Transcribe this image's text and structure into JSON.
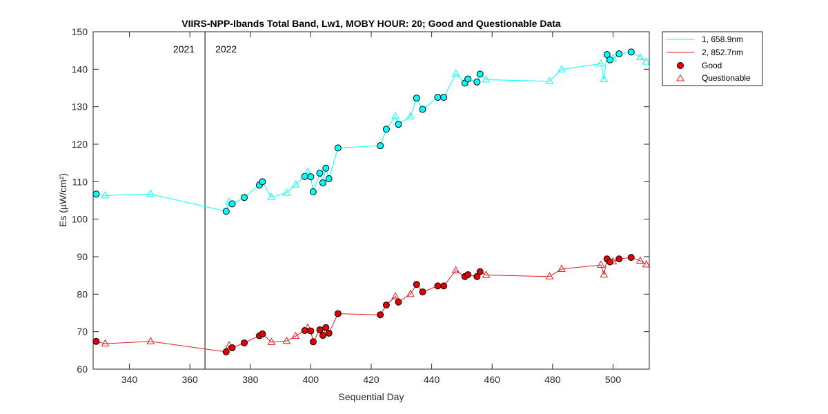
{
  "chart_data": {
    "type": "line",
    "title": "VIIRS-NPP-Ibands Total Band,  Lw1, MOBY HOUR: 20;  Good and Questionable Data",
    "xlabel": "Sequential Day",
    "ylabel": "Es (µW/cm²)",
    "xlim": [
      328,
      512
    ],
    "ylim": [
      60,
      150
    ],
    "xticks": [
      340,
      360,
      380,
      400,
      420,
      440,
      460,
      480,
      500
    ],
    "yticks": [
      60,
      70,
      80,
      90,
      100,
      110,
      120,
      130,
      140,
      150
    ],
    "grid": false,
    "legend_position": "outside-top-right",
    "year_divider": {
      "x": 365,
      "left_label": "2021",
      "right_label": "2022"
    },
    "legend": {
      "series1": "1, 658.9nm",
      "series2": "2, 852.7nm",
      "good": "Good",
      "questionable": "Questionable"
    },
    "series": [
      {
        "name": "1, 658.9nm",
        "color": "#00FFFF",
        "marker_fill": "#00FFFF",
        "points": [
          {
            "x": 329,
            "y": 106.7,
            "q": "good"
          },
          {
            "x": 332,
            "y": 106.3,
            "q": "questionable"
          },
          {
            "x": 347,
            "y": 106.7,
            "q": "questionable"
          },
          {
            "x": 372,
            "y": 102.1,
            "q": "good"
          },
          {
            "x": 373,
            "y": 104.6,
            "q": "questionable"
          },
          {
            "x": 374,
            "y": 104.1,
            "q": "good"
          },
          {
            "x": 378,
            "y": 105.8,
            "q": "good"
          },
          {
            "x": 383,
            "y": 109.1,
            "q": "good"
          },
          {
            "x": 384,
            "y": 110.0,
            "q": "good"
          },
          {
            "x": 387,
            "y": 105.8,
            "q": "questionable"
          },
          {
            "x": 392,
            "y": 107.0,
            "q": "questionable"
          },
          {
            "x": 395,
            "y": 109.2,
            "q": "questionable"
          },
          {
            "x": 398,
            "y": 111.4,
            "q": "good"
          },
          {
            "x": 399,
            "y": 112.6,
            "q": "questionable"
          },
          {
            "x": 400,
            "y": 111.3,
            "q": "good"
          },
          {
            "x": 400.8,
            "y": 107.3,
            "q": "good"
          },
          {
            "x": 403,
            "y": 112.3,
            "q": "good"
          },
          {
            "x": 404,
            "y": 109.7,
            "q": "good"
          },
          {
            "x": 405,
            "y": 113.6,
            "q": "good"
          },
          {
            "x": 406,
            "y": 110.8,
            "q": "good"
          },
          {
            "x": 409,
            "y": 119.0,
            "q": "good"
          },
          {
            "x": 423,
            "y": 119.6,
            "q": "good"
          },
          {
            "x": 425,
            "y": 124.0,
            "q": "good"
          },
          {
            "x": 428,
            "y": 127.4,
            "q": "questionable"
          },
          {
            "x": 429,
            "y": 125.3,
            "q": "good"
          },
          {
            "x": 433,
            "y": 127.4,
            "q": "questionable"
          },
          {
            "x": 435,
            "y": 132.3,
            "q": "good"
          },
          {
            "x": 437,
            "y": 129.3,
            "q": "good"
          },
          {
            "x": 442,
            "y": 132.5,
            "q": "good"
          },
          {
            "x": 444,
            "y": 132.5,
            "q": "good"
          },
          {
            "x": 448,
            "y": 138.8,
            "q": "questionable"
          },
          {
            "x": 451,
            "y": 136.3,
            "q": "good"
          },
          {
            "x": 452,
            "y": 137.4,
            "q": "good"
          },
          {
            "x": 455,
            "y": 136.6,
            "q": "good"
          },
          {
            "x": 456,
            "y": 138.7,
            "q": "good"
          },
          {
            "x": 458,
            "y": 137.2,
            "q": "questionable"
          },
          {
            "x": 479,
            "y": 136.8,
            "q": "questionable"
          },
          {
            "x": 483,
            "y": 139.9,
            "q": "questionable"
          },
          {
            "x": 496,
            "y": 141.5,
            "q": "questionable"
          },
          {
            "x": 497,
            "y": 137.3,
            "q": "questionable"
          },
          {
            "x": 498,
            "y": 143.9,
            "q": "good"
          },
          {
            "x": 499,
            "y": 142.5,
            "q": "good"
          },
          {
            "x": 500,
            "y": 142.9,
            "q": "questionable"
          },
          {
            "x": 502,
            "y": 144.1,
            "q": "good"
          },
          {
            "x": 506,
            "y": 144.6,
            "q": "good"
          },
          {
            "x": 509,
            "y": 143.2,
            "q": "questionable"
          },
          {
            "x": 511,
            "y": 142.0,
            "q": "questionable"
          }
        ]
      },
      {
        "name": "2, 852.7nm",
        "color": "#E41A1C",
        "marker_fill": "#E00000",
        "points": [
          {
            "x": 329,
            "y": 67.4,
            "q": "good"
          },
          {
            "x": 332,
            "y": 66.8,
            "q": "questionable"
          },
          {
            "x": 347,
            "y": 67.4,
            "q": "questionable"
          },
          {
            "x": 372,
            "y": 64.6,
            "q": "good"
          },
          {
            "x": 373,
            "y": 66.3,
            "q": "questionable"
          },
          {
            "x": 374,
            "y": 65.7,
            "q": "good"
          },
          {
            "x": 378,
            "y": 67.0,
            "q": "good"
          },
          {
            "x": 383,
            "y": 68.9,
            "q": "good"
          },
          {
            "x": 384,
            "y": 69.4,
            "q": "good"
          },
          {
            "x": 387,
            "y": 67.2,
            "q": "questionable"
          },
          {
            "x": 392,
            "y": 67.5,
            "q": "questionable"
          },
          {
            "x": 395,
            "y": 68.8,
            "q": "questionable"
          },
          {
            "x": 398,
            "y": 70.3,
            "q": "good"
          },
          {
            "x": 399,
            "y": 71.0,
            "q": "questionable"
          },
          {
            "x": 400,
            "y": 70.2,
            "q": "good"
          },
          {
            "x": 400.8,
            "y": 67.3,
            "q": "good"
          },
          {
            "x": 403,
            "y": 70.5,
            "q": "good"
          },
          {
            "x": 404,
            "y": 69.0,
            "q": "good"
          },
          {
            "x": 405,
            "y": 71.1,
            "q": "good"
          },
          {
            "x": 406,
            "y": 69.6,
            "q": "good"
          },
          {
            "x": 409,
            "y": 74.8,
            "q": "good"
          },
          {
            "x": 423,
            "y": 74.5,
            "q": "good"
          },
          {
            "x": 425,
            "y": 77.1,
            "q": "good"
          },
          {
            "x": 428,
            "y": 79.4,
            "q": "questionable"
          },
          {
            "x": 429,
            "y": 77.9,
            "q": "good"
          },
          {
            "x": 433,
            "y": 80.0,
            "q": "questionable"
          },
          {
            "x": 435,
            "y": 82.6,
            "q": "good"
          },
          {
            "x": 437,
            "y": 80.6,
            "q": "good"
          },
          {
            "x": 442,
            "y": 82.2,
            "q": "good"
          },
          {
            "x": 444,
            "y": 82.2,
            "q": "good"
          },
          {
            "x": 448,
            "y": 86.3,
            "q": "questionable"
          },
          {
            "x": 451,
            "y": 84.7,
            "q": "good"
          },
          {
            "x": 452,
            "y": 85.2,
            "q": "good"
          },
          {
            "x": 455,
            "y": 84.7,
            "q": "good"
          },
          {
            "x": 456,
            "y": 86.0,
            "q": "good"
          },
          {
            "x": 458,
            "y": 85.1,
            "q": "questionable"
          },
          {
            "x": 479,
            "y": 84.7,
            "q": "questionable"
          },
          {
            "x": 483,
            "y": 86.7,
            "q": "questionable"
          },
          {
            "x": 496,
            "y": 87.8,
            "q": "questionable"
          },
          {
            "x": 497,
            "y": 85.2,
            "q": "questionable"
          },
          {
            "x": 498,
            "y": 89.4,
            "q": "good"
          },
          {
            "x": 499,
            "y": 88.6,
            "q": "good"
          },
          {
            "x": 500,
            "y": 88.7,
            "q": "questionable"
          },
          {
            "x": 502,
            "y": 89.4,
            "q": "good"
          },
          {
            "x": 506,
            "y": 89.8,
            "q": "good"
          },
          {
            "x": 509,
            "y": 88.9,
            "q": "questionable"
          },
          {
            "x": 511,
            "y": 87.9,
            "q": "questionable"
          }
        ]
      }
    ]
  }
}
